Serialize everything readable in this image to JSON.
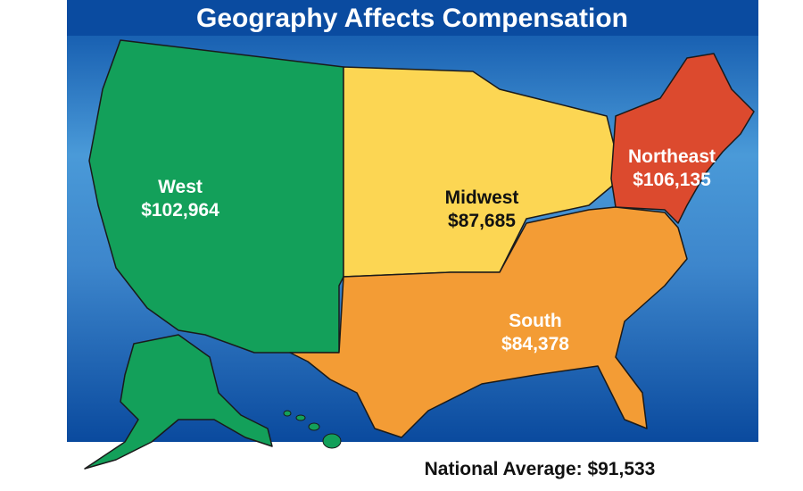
{
  "title": "Geography Affects Compensation",
  "regions": [
    {
      "name": "West",
      "value": "$102,964"
    },
    {
      "name": "Midwest",
      "value": "$87,685"
    },
    {
      "name": "Northeast",
      "value": "$106,135"
    },
    {
      "name": "South",
      "value": "$84,378"
    }
  ],
  "national_average": "National Average: $91,533"
}
